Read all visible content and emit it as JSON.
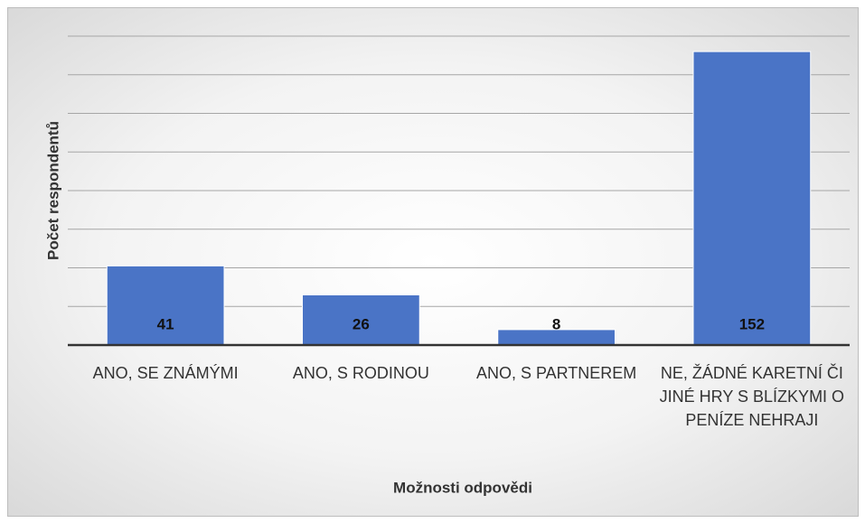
{
  "chart_data": {
    "type": "bar",
    "x_label": "Možnosti odpovědi",
    "y_label": "Počet respondentů",
    "categories": [
      "ANO, SE ZNÁMÝMI",
      "ANO, S RODINOU",
      "ANO, S PARTNEREM",
      "NE, ŽÁDNÉ KARETNÍ ČI JINÉ HRY S BLÍZKYMI O PENÍZE NEHRAJI"
    ],
    "values": [
      41,
      26,
      8,
      152
    ],
    "color": "#4a74c6",
    "ylim": [
      0,
      160
    ],
    "yticks": [
      0,
      20,
      40,
      60,
      80,
      100,
      120,
      140,
      160
    ],
    "grid": true
  }
}
